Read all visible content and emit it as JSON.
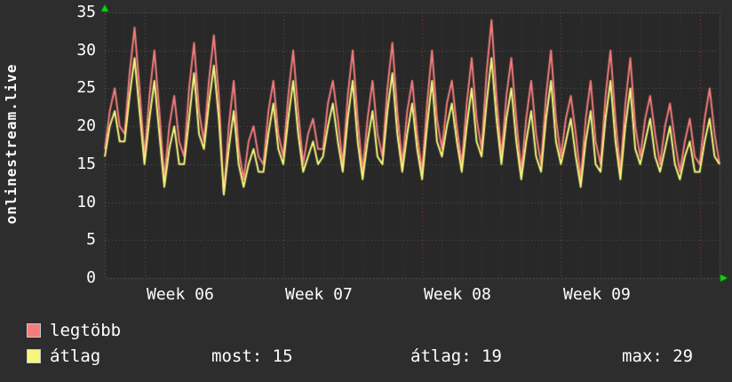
{
  "title_vertical": "onlinestream.live",
  "colors": {
    "bg": "#2d2d2d",
    "plot_bg": "#282828",
    "text": "#ffffff",
    "grid_h": "#5a5a5a",
    "grid_day": "#553535",
    "grid_week": "#8a4444",
    "frame": "#777777",
    "arrow": "#00e000",
    "legtobb": "#f47c7c",
    "atlag": "#f6f67c"
  },
  "legend": {
    "items": [
      {
        "label": "legtöbb",
        "color": "#f47c7c"
      },
      {
        "label": "átlag",
        "color": "#f6f67c"
      }
    ],
    "stats": [
      "most: 15",
      "átlag: 19",
      "max: 29"
    ]
  },
  "chart_data": {
    "type": "line",
    "title": "",
    "xlabel": "",
    "ylabel": "",
    "ylim": [
      0,
      35
    ],
    "y_ticks": [
      0,
      5,
      10,
      15,
      20,
      25,
      30,
      35
    ],
    "x_tick_labels": [
      "Week 06",
      "Week 07",
      "Week 08",
      "Week 09"
    ],
    "days": 31,
    "week_boundary_days": [
      2,
      9,
      16,
      23,
      30
    ],
    "x_label_days": [
      2,
      9,
      16,
      23
    ],
    "grid": true,
    "legend_position": "bottom",
    "stats": {
      "most": 15,
      "atlag": 19,
      "max": 29
    },
    "series": [
      {
        "name": "legtöbb",
        "color": "#f47c7c",
        "values": [
          17,
          22,
          25,
          20,
          19,
          27,
          33,
          25,
          16,
          24,
          30,
          22,
          13,
          20,
          24,
          18,
          16,
          25,
          31,
          22,
          18,
          26,
          32,
          24,
          11,
          20,
          26,
          17,
          13,
          18,
          20,
          16,
          15,
          22,
          26,
          19,
          16,
          24,
          30,
          22,
          15,
          19,
          21,
          17,
          17,
          23,
          26,
          21,
          15,
          24,
          30,
          21,
          14,
          21,
          26,
          19,
          16,
          25,
          31,
          22,
          15,
          22,
          26,
          19,
          14,
          23,
          30,
          21,
          17,
          23,
          26,
          20,
          15,
          23,
          29,
          21,
          17,
          27,
          34,
          24,
          16,
          24,
          29,
          21,
          14,
          21,
          26,
          19,
          15,
          24,
          30,
          21,
          16,
          21,
          24,
          19,
          13,
          21,
          26,
          18,
          15,
          24,
          30,
          21,
          14,
          23,
          29,
          20,
          16,
          21,
          24,
          19,
          15,
          20,
          23,
          18,
          14,
          18,
          21,
          16,
          15,
          21,
          25,
          19,
          15
        ]
      },
      {
        "name": "átlag",
        "color": "#f6f67c",
        "values": [
          16,
          20,
          22,
          18,
          18,
          24,
          29,
          22,
          15,
          21,
          26,
          19,
          12,
          17,
          20,
          15,
          15,
          21,
          27,
          19,
          17,
          23,
          28,
          21,
          11,
          17,
          22,
          15,
          12,
          15,
          17,
          14,
          14,
          19,
          23,
          17,
          15,
          21,
          26,
          19,
          14,
          16,
          18,
          15,
          16,
          20,
          23,
          18,
          14,
          21,
          26,
          18,
          13,
          18,
          22,
          16,
          15,
          22,
          27,
          19,
          14,
          19,
          23,
          17,
          13,
          20,
          26,
          18,
          16,
          20,
          23,
          18,
          14,
          20,
          25,
          18,
          16,
          23,
          29,
          21,
          15,
          21,
          25,
          18,
          13,
          18,
          22,
          16,
          14,
          21,
          26,
          18,
          15,
          18,
          21,
          16,
          12,
          18,
          22,
          15,
          14,
          21,
          26,
          18,
          13,
          20,
          25,
          17,
          15,
          18,
          21,
          16,
          14,
          17,
          20,
          15,
          13,
          16,
          18,
          14,
          14,
          18,
          21,
          16,
          15
        ]
      }
    ]
  }
}
